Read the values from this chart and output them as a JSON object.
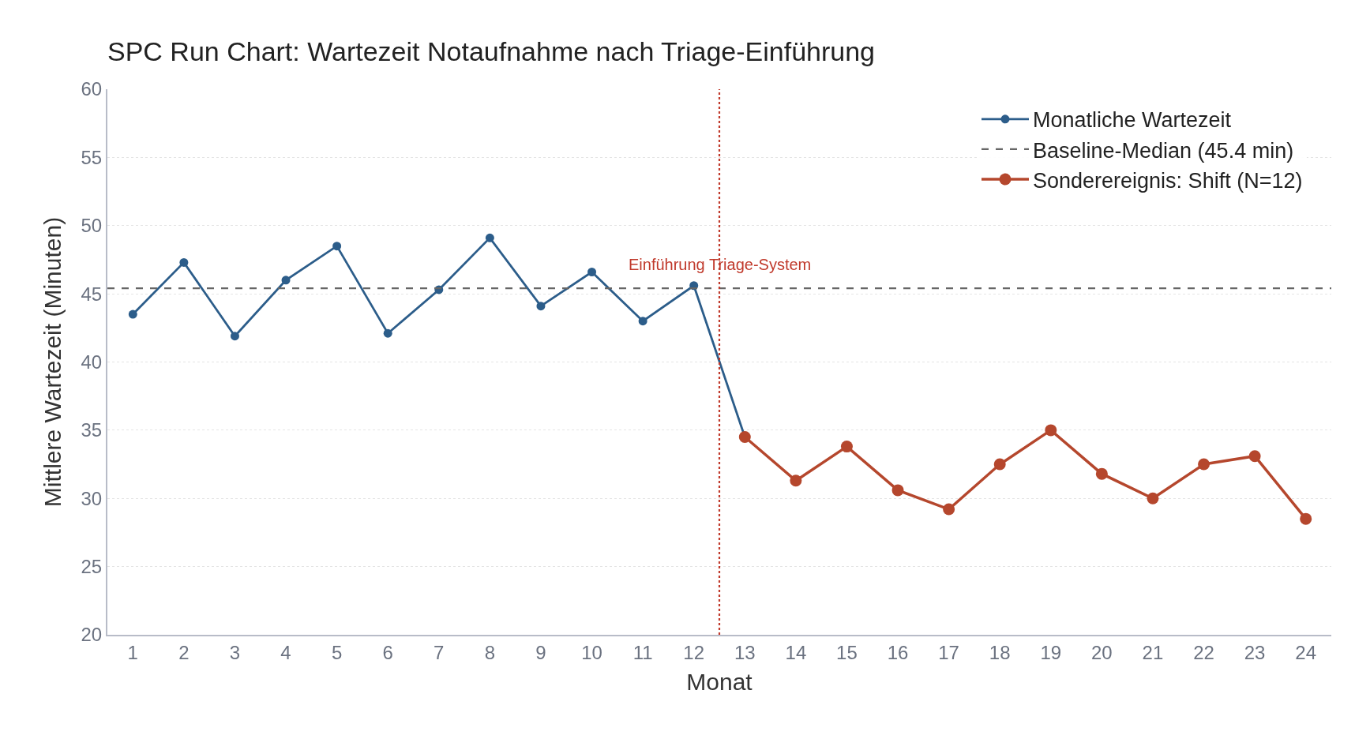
{
  "chart_data": {
    "type": "line",
    "title": "SPC Run Chart: Wartezeit Notaufnahme nach Triage-Einführung",
    "xlabel": "Monat",
    "ylabel": "Mittlere Wartezeit (Minuten)",
    "x": [
      1,
      2,
      3,
      4,
      5,
      6,
      7,
      8,
      9,
      10,
      11,
      12,
      13,
      14,
      15,
      16,
      17,
      18,
      19,
      20,
      21,
      22,
      23,
      24
    ],
    "series": [
      {
        "name": "Monatliche Wartezeit",
        "color": "#2c5d8a",
        "marker": "circle",
        "line_style": "solid",
        "values": [
          43.5,
          47.3,
          41.9,
          46.0,
          48.5,
          42.1,
          45.3,
          49.1,
          44.1,
          46.6,
          43.0,
          45.6,
          34.5,
          null,
          null,
          null,
          null,
          null,
          null,
          null,
          null,
          null,
          null,
          null
        ]
      },
      {
        "name": "Sonderereignis: Shift (N=12)",
        "color": "#b5472d",
        "marker": "circle",
        "line_style": "solid",
        "values": [
          null,
          null,
          null,
          null,
          null,
          null,
          null,
          null,
          null,
          null,
          null,
          null,
          34.5,
          31.3,
          33.8,
          30.6,
          29.2,
          32.5,
          35.0,
          31.8,
          30.0,
          32.5,
          33.1,
          28.5
        ]
      }
    ],
    "ref_lines": [
      {
        "axis": "y",
        "value": 45.4,
        "label": "Baseline-Median (45.4 min)",
        "color": "#666666",
        "line_style": "dashed"
      },
      {
        "axis": "x",
        "value": 12.5,
        "label": "Einführung Triage-System",
        "color": "#c0392b",
        "line_style": "dotted"
      }
    ],
    "xlim": [
      0.5,
      24.5
    ],
    "xticks": [
      1,
      2,
      3,
      4,
      5,
      6,
      7,
      8,
      9,
      10,
      11,
      12,
      13,
      14,
      15,
      16,
      17,
      18,
      19,
      20,
      21,
      22,
      23,
      24
    ],
    "ylim": [
      20,
      60
    ],
    "yticks": [
      20,
      25,
      30,
      35,
      40,
      45,
      50,
      55,
      60
    ],
    "grid": "y",
    "legend": "top right"
  }
}
